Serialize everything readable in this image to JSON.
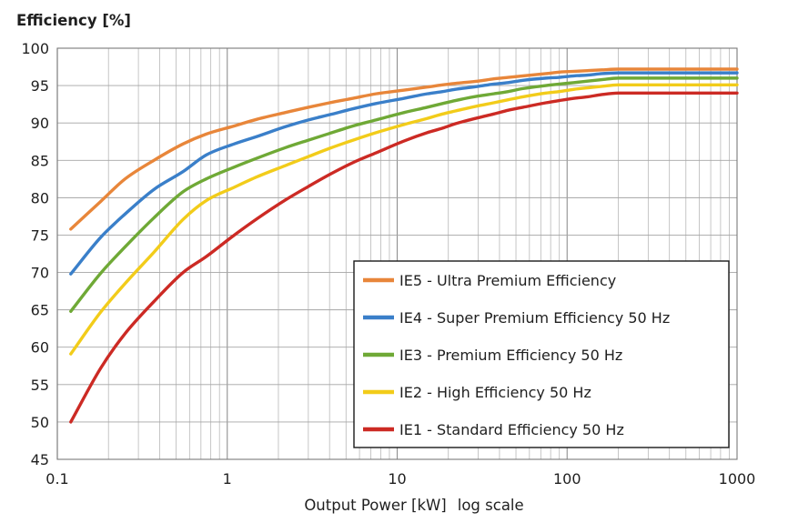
{
  "chart_data": {
    "type": "line",
    "title": "",
    "ylabel": "Efficiency [%]",
    "xlabel": "Output Power [kW]",
    "xlabel_note": "log scale",
    "xscale": "log",
    "xlim": [
      0.1,
      1000
    ],
    "ylim": [
      45,
      100
    ],
    "grid": true,
    "legend_position": "bottom-right",
    "x_ticks": [
      {
        "value": 0.1,
        "label": "0.1"
      },
      {
        "value": 1,
        "label": "1"
      },
      {
        "value": 10,
        "label": "10"
      },
      {
        "value": 100,
        "label": "100"
      },
      {
        "value": 1000,
        "label": "1000"
      }
    ],
    "y_ticks": [
      {
        "value": 45,
        "label": "45"
      },
      {
        "value": 50,
        "label": "50"
      },
      {
        "value": 55,
        "label": "55"
      },
      {
        "value": 60,
        "label": "60"
      },
      {
        "value": 65,
        "label": "65"
      },
      {
        "value": 70,
        "label": "70"
      },
      {
        "value": 75,
        "label": "75"
      },
      {
        "value": 80,
        "label": "80"
      },
      {
        "value": 85,
        "label": "85"
      },
      {
        "value": 90,
        "label": "90"
      },
      {
        "value": 95,
        "label": "95"
      },
      {
        "value": 100,
        "label": "100"
      }
    ],
    "series": [
      {
        "name": "IE5 - Ultra Premium Efficiency",
        "color": "#E8863A",
        "points": [
          [
            0.12,
            75.8
          ],
          [
            0.18,
            79.5
          ],
          [
            0.25,
            82.5
          ],
          [
            0.37,
            85.0
          ],
          [
            0.55,
            87.2
          ],
          [
            0.75,
            88.5
          ],
          [
            1.1,
            89.6
          ],
          [
            1.5,
            90.5
          ],
          [
            2.2,
            91.4
          ],
          [
            3,
            92.1
          ],
          [
            4,
            92.7
          ],
          [
            5.5,
            93.3
          ],
          [
            7.5,
            93.9
          ],
          [
            11,
            94.4
          ],
          [
            15,
            94.8
          ],
          [
            18.5,
            95.1
          ],
          [
            22,
            95.3
          ],
          [
            30,
            95.6
          ],
          [
            37,
            95.9
          ],
          [
            45,
            96.1
          ],
          [
            55,
            96.3
          ],
          [
            75,
            96.6
          ],
          [
            90,
            96.8
          ],
          [
            110,
            96.9
          ],
          [
            132,
            97.0
          ],
          [
            160,
            97.1
          ],
          [
            200,
            97.2
          ],
          [
            1000,
            97.2
          ]
        ]
      },
      {
        "name": "IE4 - Super Premium Efficiency 50 Hz",
        "color": "#3A7FC9",
        "points": [
          [
            0.12,
            69.8
          ],
          [
            0.18,
            74.7
          ],
          [
            0.25,
            77.8
          ],
          [
            0.37,
            81.1
          ],
          [
            0.55,
            83.5
          ],
          [
            0.75,
            85.7
          ],
          [
            1.1,
            87.2
          ],
          [
            1.5,
            88.2
          ],
          [
            2.2,
            89.5
          ],
          [
            3,
            90.4
          ],
          [
            4,
            91.1
          ],
          [
            5.5,
            91.9
          ],
          [
            7.5,
            92.6
          ],
          [
            11,
            93.3
          ],
          [
            15,
            93.9
          ],
          [
            18.5,
            94.2
          ],
          [
            22,
            94.5
          ],
          [
            30,
            94.9
          ],
          [
            37,
            95.2
          ],
          [
            45,
            95.4
          ],
          [
            55,
            95.7
          ],
          [
            75,
            96.0
          ],
          [
            90,
            96.1
          ],
          [
            110,
            96.3
          ],
          [
            132,
            96.4
          ],
          [
            160,
            96.6
          ],
          [
            200,
            96.7
          ],
          [
            1000,
            96.7
          ]
        ]
      },
      {
        "name": "IE3 - Premium Efficiency 50 Hz",
        "color": "#6FA936",
        "points": [
          [
            0.12,
            64.8
          ],
          [
            0.18,
            69.9
          ],
          [
            0.25,
            73.4
          ],
          [
            0.37,
            77.3
          ],
          [
            0.55,
            80.8
          ],
          [
            0.75,
            82.5
          ],
          [
            1.1,
            84.1
          ],
          [
            1.5,
            85.3
          ],
          [
            2.2,
            86.7
          ],
          [
            3,
            87.7
          ],
          [
            4,
            88.6
          ],
          [
            5.5,
            89.6
          ],
          [
            7.5,
            90.4
          ],
          [
            11,
            91.4
          ],
          [
            15,
            92.1
          ],
          [
            18.5,
            92.6
          ],
          [
            22,
            93.0
          ],
          [
            30,
            93.6
          ],
          [
            37,
            93.9
          ],
          [
            45,
            94.2
          ],
          [
            55,
            94.6
          ],
          [
            75,
            95.0
          ],
          [
            90,
            95.2
          ],
          [
            110,
            95.4
          ],
          [
            132,
            95.6
          ],
          [
            160,
            95.8
          ],
          [
            200,
            96.0
          ],
          [
            1000,
            96.0
          ]
        ]
      },
      {
        "name": "IE2 - High Efficiency 50 Hz",
        "color": "#F2CC1A",
        "points": [
          [
            0.12,
            59.1
          ],
          [
            0.18,
            64.7
          ],
          [
            0.25,
            68.5
          ],
          [
            0.37,
            72.7
          ],
          [
            0.55,
            77.1
          ],
          [
            0.75,
            79.6
          ],
          [
            1.1,
            81.4
          ],
          [
            1.5,
            82.8
          ],
          [
            2.2,
            84.3
          ],
          [
            3,
            85.5
          ],
          [
            4,
            86.6
          ],
          [
            5.5,
            87.7
          ],
          [
            7.5,
            88.7
          ],
          [
            11,
            89.8
          ],
          [
            15,
            90.6
          ],
          [
            18.5,
            91.2
          ],
          [
            22,
            91.6
          ],
          [
            30,
            92.3
          ],
          [
            37,
            92.7
          ],
          [
            45,
            93.1
          ],
          [
            55,
            93.5
          ],
          [
            75,
            94.0
          ],
          [
            90,
            94.2
          ],
          [
            110,
            94.5
          ],
          [
            132,
            94.7
          ],
          [
            160,
            94.9
          ],
          [
            200,
            95.1
          ],
          [
            1000,
            95.1
          ]
        ]
      },
      {
        "name": "IE1 - Standard Efficiency 50 Hz",
        "color": "#CC2A24",
        "points": [
          [
            0.12,
            50.0
          ],
          [
            0.18,
            57.2
          ],
          [
            0.25,
            61.8
          ],
          [
            0.37,
            66.1
          ],
          [
            0.55,
            70.0
          ],
          [
            0.75,
            72.1
          ],
          [
            1.1,
            75.0
          ],
          [
            1.5,
            77.2
          ],
          [
            2.2,
            79.7
          ],
          [
            3,
            81.5
          ],
          [
            4,
            83.1
          ],
          [
            5.5,
            84.7
          ],
          [
            7.5,
            86.0
          ],
          [
            11,
            87.6
          ],
          [
            15,
            88.7
          ],
          [
            18.5,
            89.3
          ],
          [
            22,
            89.9
          ],
          [
            30,
            90.7
          ],
          [
            37,
            91.2
          ],
          [
            45,
            91.7
          ],
          [
            55,
            92.1
          ],
          [
            75,
            92.7
          ],
          [
            90,
            93.0
          ],
          [
            110,
            93.3
          ],
          [
            132,
            93.5
          ],
          [
            160,
            93.8
          ],
          [
            200,
            94.0
          ],
          [
            1000,
            94.0
          ]
        ]
      }
    ]
  }
}
